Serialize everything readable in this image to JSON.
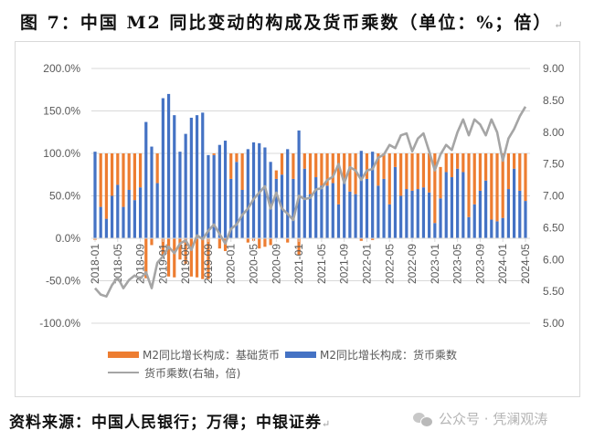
{
  "title": "图 7：中国 M2 同比变动的构成及货币乘数（单位：%；倍）",
  "source": "资料来源：中国人民银行；万得；中银证券",
  "watermark": "公众号 · 凭澜观涛",
  "colors": {
    "base_money": "#ed7d31",
    "multiplier_bar": "#4472c4",
    "multiplier_line": "#a5a5a5",
    "grid": "#d9d9d9",
    "tick_text": "#595959"
  },
  "legend": {
    "base_money": "M2同比增长构成：基础货币",
    "multiplier": "M2同比增长构成：货币乘数",
    "line": "货币乘数(右轴，倍)"
  },
  "chart_data": {
    "type": "bar+line",
    "title": "图 7：中国 M2 同比变动的构成及货币乘数（单位：%；倍）",
    "xlabel": "",
    "ylabel_left": "%",
    "ylabel_right": "倍",
    "ylim_left": [
      -100,
      200
    ],
    "ylim_right": [
      5.0,
      9.0
    ],
    "yticks_left": [
      "200.0%",
      "150.0%",
      "100.0%",
      "50.0%",
      "0.0%",
      "-50.0%",
      "-100.0%"
    ],
    "yticks_right": [
      "9.00",
      "8.50",
      "8.00",
      "7.50",
      "7.00",
      "6.50",
      "6.00",
      "5.50",
      "5.00"
    ],
    "x_tick_labels": [
      "2018-01",
      "2018-05",
      "2018-09",
      "2019-01",
      "2019-05",
      "2019-09",
      "2020-01",
      "2020-05",
      "2020-09",
      "2021-01",
      "2021-05",
      "2021-09",
      "2022-01",
      "2022-05",
      "2022-09",
      "2023-01",
      "2023-05",
      "2023-09",
      "2024-01",
      "2024-05"
    ],
    "grid": true,
    "legend_position": "bottom",
    "x": [
      "2018-01",
      "2018-02",
      "2018-03",
      "2018-04",
      "2018-05",
      "2018-06",
      "2018-07",
      "2018-08",
      "2018-09",
      "2018-10",
      "2018-11",
      "2018-12",
      "2019-01",
      "2019-02",
      "2019-03",
      "2019-04",
      "2019-05",
      "2019-06",
      "2019-07",
      "2019-08",
      "2019-09",
      "2019-10",
      "2019-11",
      "2019-12",
      "2020-01",
      "2020-02",
      "2020-03",
      "2020-04",
      "2020-05",
      "2020-06",
      "2020-07",
      "2020-08",
      "2020-09",
      "2020-10",
      "2020-11",
      "2020-12",
      "2021-01",
      "2021-02",
      "2021-03",
      "2021-04",
      "2021-05",
      "2021-06",
      "2021-07",
      "2021-08",
      "2021-09",
      "2021-10",
      "2021-11",
      "2021-12",
      "2022-01",
      "2022-02",
      "2022-03",
      "2022-04",
      "2022-05",
      "2022-06",
      "2022-07",
      "2022-08",
      "2022-09",
      "2022-10",
      "2022-11",
      "2022-12",
      "2023-01",
      "2023-02",
      "2023-03",
      "2023-04",
      "2023-05",
      "2023-06",
      "2023-07",
      "2023-08",
      "2023-09",
      "2023-10",
      "2023-11",
      "2023-12",
      "2024-01",
      "2024-02",
      "2024-03",
      "2024-04",
      "2024-05"
    ],
    "series": [
      {
        "name": "M2同比增长构成：基础货币",
        "type": "bar",
        "axis": "left",
        "values": [
          -2,
          63,
          77,
          50,
          37,
          63,
          43,
          55,
          40,
          -47,
          -8,
          35,
          -22,
          -45,
          -46,
          -25,
          -30,
          -45,
          -46,
          -48,
          -48,
          2,
          -12,
          -15,
          30,
          10,
          43,
          -5,
          -3,
          -12,
          -10,
          -8,
          10,
          25,
          -5,
          30,
          -20,
          18,
          48,
          28,
          38,
          38,
          35,
          60,
          32,
          45,
          48,
          -3,
          30,
          -2,
          38,
          30,
          60,
          16,
          50,
          42,
          44,
          42,
          40,
          46,
          82,
          37,
          22,
          28,
          18,
          22,
          75,
          60,
          44,
          32,
          78,
          80,
          76,
          42,
          18,
          44,
          56
        ],
        "values_note": "stacked with multiplier; sums to ~100% when both positive"
      },
      {
        "name": "M2同比增长构成：货币乘数",
        "type": "bar",
        "axis": "left",
        "values": [
          102,
          37,
          23,
          50,
          63,
          37,
          57,
          45,
          60,
          137,
          108,
          65,
          165,
          170,
          145,
          102,
          123,
          142,
          145,
          148,
          98,
          98,
          110,
          115,
          70,
          90,
          57,
          105,
          113,
          112,
          107,
          90,
          70,
          75,
          105,
          70,
          127,
          82,
          52,
          72,
          62,
          62,
          65,
          40,
          68,
          55,
          52,
          103,
          70,
          102,
          62,
          70,
          40,
          84,
          50,
          58,
          56,
          58,
          60,
          54,
          18,
          47,
          78,
          72,
          82,
          78,
          25,
          40,
          56,
          68,
          22,
          20,
          24,
          58,
          82,
          56,
          44
        ]
      },
      {
        "name": "货币乘数(右轴，倍)",
        "type": "line",
        "axis": "right",
        "values": [
          5.55,
          5.45,
          5.42,
          5.6,
          5.72,
          5.55,
          5.68,
          5.75,
          5.7,
          5.8,
          5.55,
          5.95,
          6.05,
          6.2,
          6.1,
          6.25,
          6.3,
          6.15,
          6.38,
          6.32,
          6.45,
          6.55,
          6.4,
          6.25,
          6.48,
          6.55,
          6.7,
          6.8,
          6.95,
          7.05,
          7.15,
          6.8,
          7.05,
          6.8,
          6.72,
          6.62,
          7.0,
          6.95,
          6.97,
          7.1,
          7.12,
          7.25,
          7.3,
          7.5,
          7.2,
          7.45,
          7.4,
          7.25,
          7.4,
          7.42,
          7.6,
          7.65,
          7.8,
          7.75,
          7.95,
          7.98,
          7.7,
          7.9,
          7.98,
          7.7,
          7.4,
          7.65,
          7.8,
          7.72,
          8.0,
          8.2,
          7.95,
          8.2,
          8.12,
          7.95,
          8.2,
          8.0,
          7.55,
          7.9,
          8.05,
          8.25,
          8.4
        ]
      }
    ]
  }
}
